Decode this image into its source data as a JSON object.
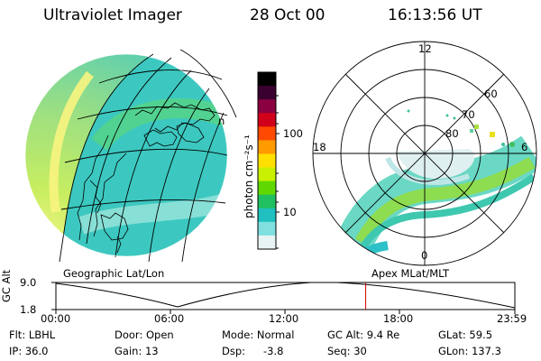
{
  "header": {
    "title": "Ultraviolet Imager",
    "date": "28 Oct 00",
    "time": "16:13:56 UT"
  },
  "colorbar": {
    "unit_label": "photon cm⁻²s⁻¹",
    "ticks": [
      "100",
      "10"
    ],
    "colors": [
      "#000000",
      "#3a0030",
      "#8a0040",
      "#d0001a",
      "#ff4a00",
      "#ff9a00",
      "#ffe000",
      "#c8f000",
      "#60d800",
      "#20c060",
      "#20c0c0",
      "#80e0e0",
      "#e8f4f4"
    ]
  },
  "left_map": {
    "caption": "Geographic Lat/Lon",
    "edge_label": "n"
  },
  "right_map": {
    "caption": "Apex MLat/MLT",
    "mlt_labels": {
      "top": "12",
      "left": "18",
      "right": "6",
      "bottom": "0"
    },
    "lat_labels": [
      "60",
      "70",
      "80"
    ]
  },
  "altitude_plot": {
    "y_axis_label": "GC Alt",
    "y_ticks": [
      "9.0",
      "1.8"
    ],
    "x_ticks": [
      "00:00",
      "06:00",
      "12:00",
      "18:00",
      "23:59"
    ],
    "marker_time_fraction": 0.675,
    "marker_color": "#cc0000"
  },
  "info": {
    "row1": [
      {
        "key": "Flt: LBHL"
      },
      {
        "key": "Door: Open"
      },
      {
        "key": "Mode: Normal"
      },
      {
        "key": "GC Alt: 9.4 Re"
      },
      {
        "key": "GLat: 59.5"
      }
    ],
    "row2": [
      {
        "key": "IP: 36.0"
      },
      {
        "key": "Gain: 13"
      },
      {
        "key": "Dsp:",
        "value": "-3.8"
      },
      {
        "key": "Seq: 30"
      },
      {
        "key": "GLon: 137.3"
      }
    ]
  }
}
